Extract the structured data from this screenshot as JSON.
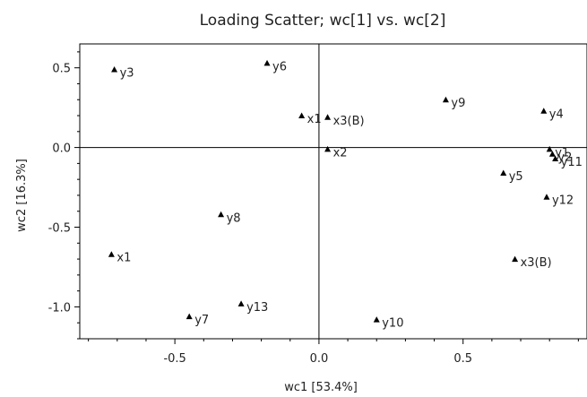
{
  "chart_data": {
    "type": "scatter",
    "title": "Loading Scatter; wc[1] vs. wc[2]",
    "xlabel": "wc1 [53.4%]",
    "ylabel": "wc2 [16.3%]",
    "xlim": [
      -0.83,
      0.93
    ],
    "ylim": [
      -1.2,
      0.65
    ],
    "xticks": [
      -0.5,
      0.0,
      0.5
    ],
    "yticks": [
      0.5,
      0.0,
      -0.5,
      -1.0
    ],
    "xtick_labels": [
      "-0.5",
      "0.0",
      "0.5"
    ],
    "ytick_labels": [
      "0.5",
      "0.0",
      "-0.5",
      "-1.0"
    ],
    "reference_lines": {
      "x": 0.0,
      "y": 0.0
    },
    "grid": false,
    "marker": "triangle",
    "marker_color": "#000000",
    "points": [
      {
        "label": "y3",
        "x": -0.71,
        "y": 0.49
      },
      {
        "label": "y6",
        "x": -0.18,
        "y": 0.53
      },
      {
        "label": "x1",
        "x": -0.06,
        "y": 0.2
      },
      {
        "label": "x3(B)",
        "x": 0.03,
        "y": 0.19
      },
      {
        "label": "x2",
        "x": 0.03,
        "y": -0.01
      },
      {
        "label": "y9",
        "x": 0.44,
        "y": 0.3
      },
      {
        "label": "y4",
        "x": 0.78,
        "y": 0.23
      },
      {
        "label": "y1",
        "x": 0.8,
        "y": -0.01
      },
      {
        "label": "y2",
        "x": 0.81,
        "y": -0.04
      },
      {
        "label": "y11",
        "x": 0.82,
        "y": -0.07
      },
      {
        "label": "y5",
        "x": 0.64,
        "y": -0.16
      },
      {
        "label": "y12",
        "x": 0.79,
        "y": -0.31
      },
      {
        "label": "y8",
        "x": -0.34,
        "y": -0.42
      },
      {
        "label": "x1",
        "x": -0.72,
        "y": -0.67
      },
      {
        "label": "x3(B)",
        "x": 0.68,
        "y": -0.7
      },
      {
        "label": "y13",
        "x": -0.27,
        "y": -0.98
      },
      {
        "label": "y7",
        "x": -0.45,
        "y": -1.06
      },
      {
        "label": "y10",
        "x": 0.2,
        "y": -1.08
      }
    ]
  }
}
